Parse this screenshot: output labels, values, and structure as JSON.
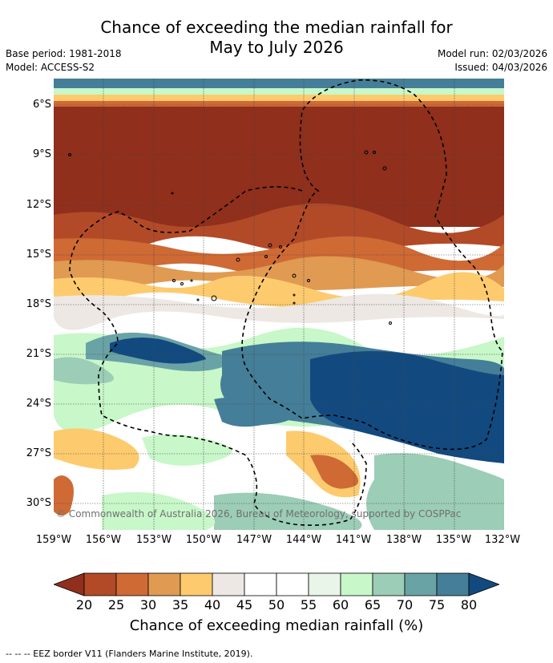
{
  "header": {
    "title_line1": "Chance of exceeding the median rainfall for",
    "title_line2": "May to July 2026",
    "base_period": "Base period: 1981-2018",
    "model": "Model: ACCESS-S2",
    "model_run": "Model run: 02/03/2026",
    "issued": "Issued: 04/03/2026"
  },
  "map": {
    "lat_labels": [
      "6°S",
      "9°S",
      "12°S",
      "15°S",
      "18°S",
      "21°S",
      "24°S",
      "27°S",
      "30°S"
    ],
    "lon_labels": [
      "159°W",
      "156°W",
      "153°W",
      "150°W",
      "147°W",
      "144°W",
      "141°W",
      "138°W",
      "135°W",
      "132°W"
    ],
    "copyright": "© Commonwealth of Australia 2026, Bureau of Meteorology, supported by COSPPac"
  },
  "colorbar": {
    "ticks": [
      "20",
      "25",
      "30",
      "35",
      "40",
      "45",
      "50",
      "55",
      "60",
      "65",
      "70",
      "75",
      "80"
    ],
    "colors": [
      "#8f2f1c",
      "#b24a28",
      "#cf6a35",
      "#e09a52",
      "#fdcb6e",
      "#ede8e3",
      "#ffffff",
      "#ffffff",
      "#e8f5e8",
      "#c8f7c9",
      "#9ccdb6",
      "#6aa3a6",
      "#457e98",
      "#124a80"
    ],
    "title": "Chance of exceeding median rainfall (%)"
  },
  "footnote": "--  --  -- EEZ border V11 (Flanders Marine Institute, 2019)."
}
